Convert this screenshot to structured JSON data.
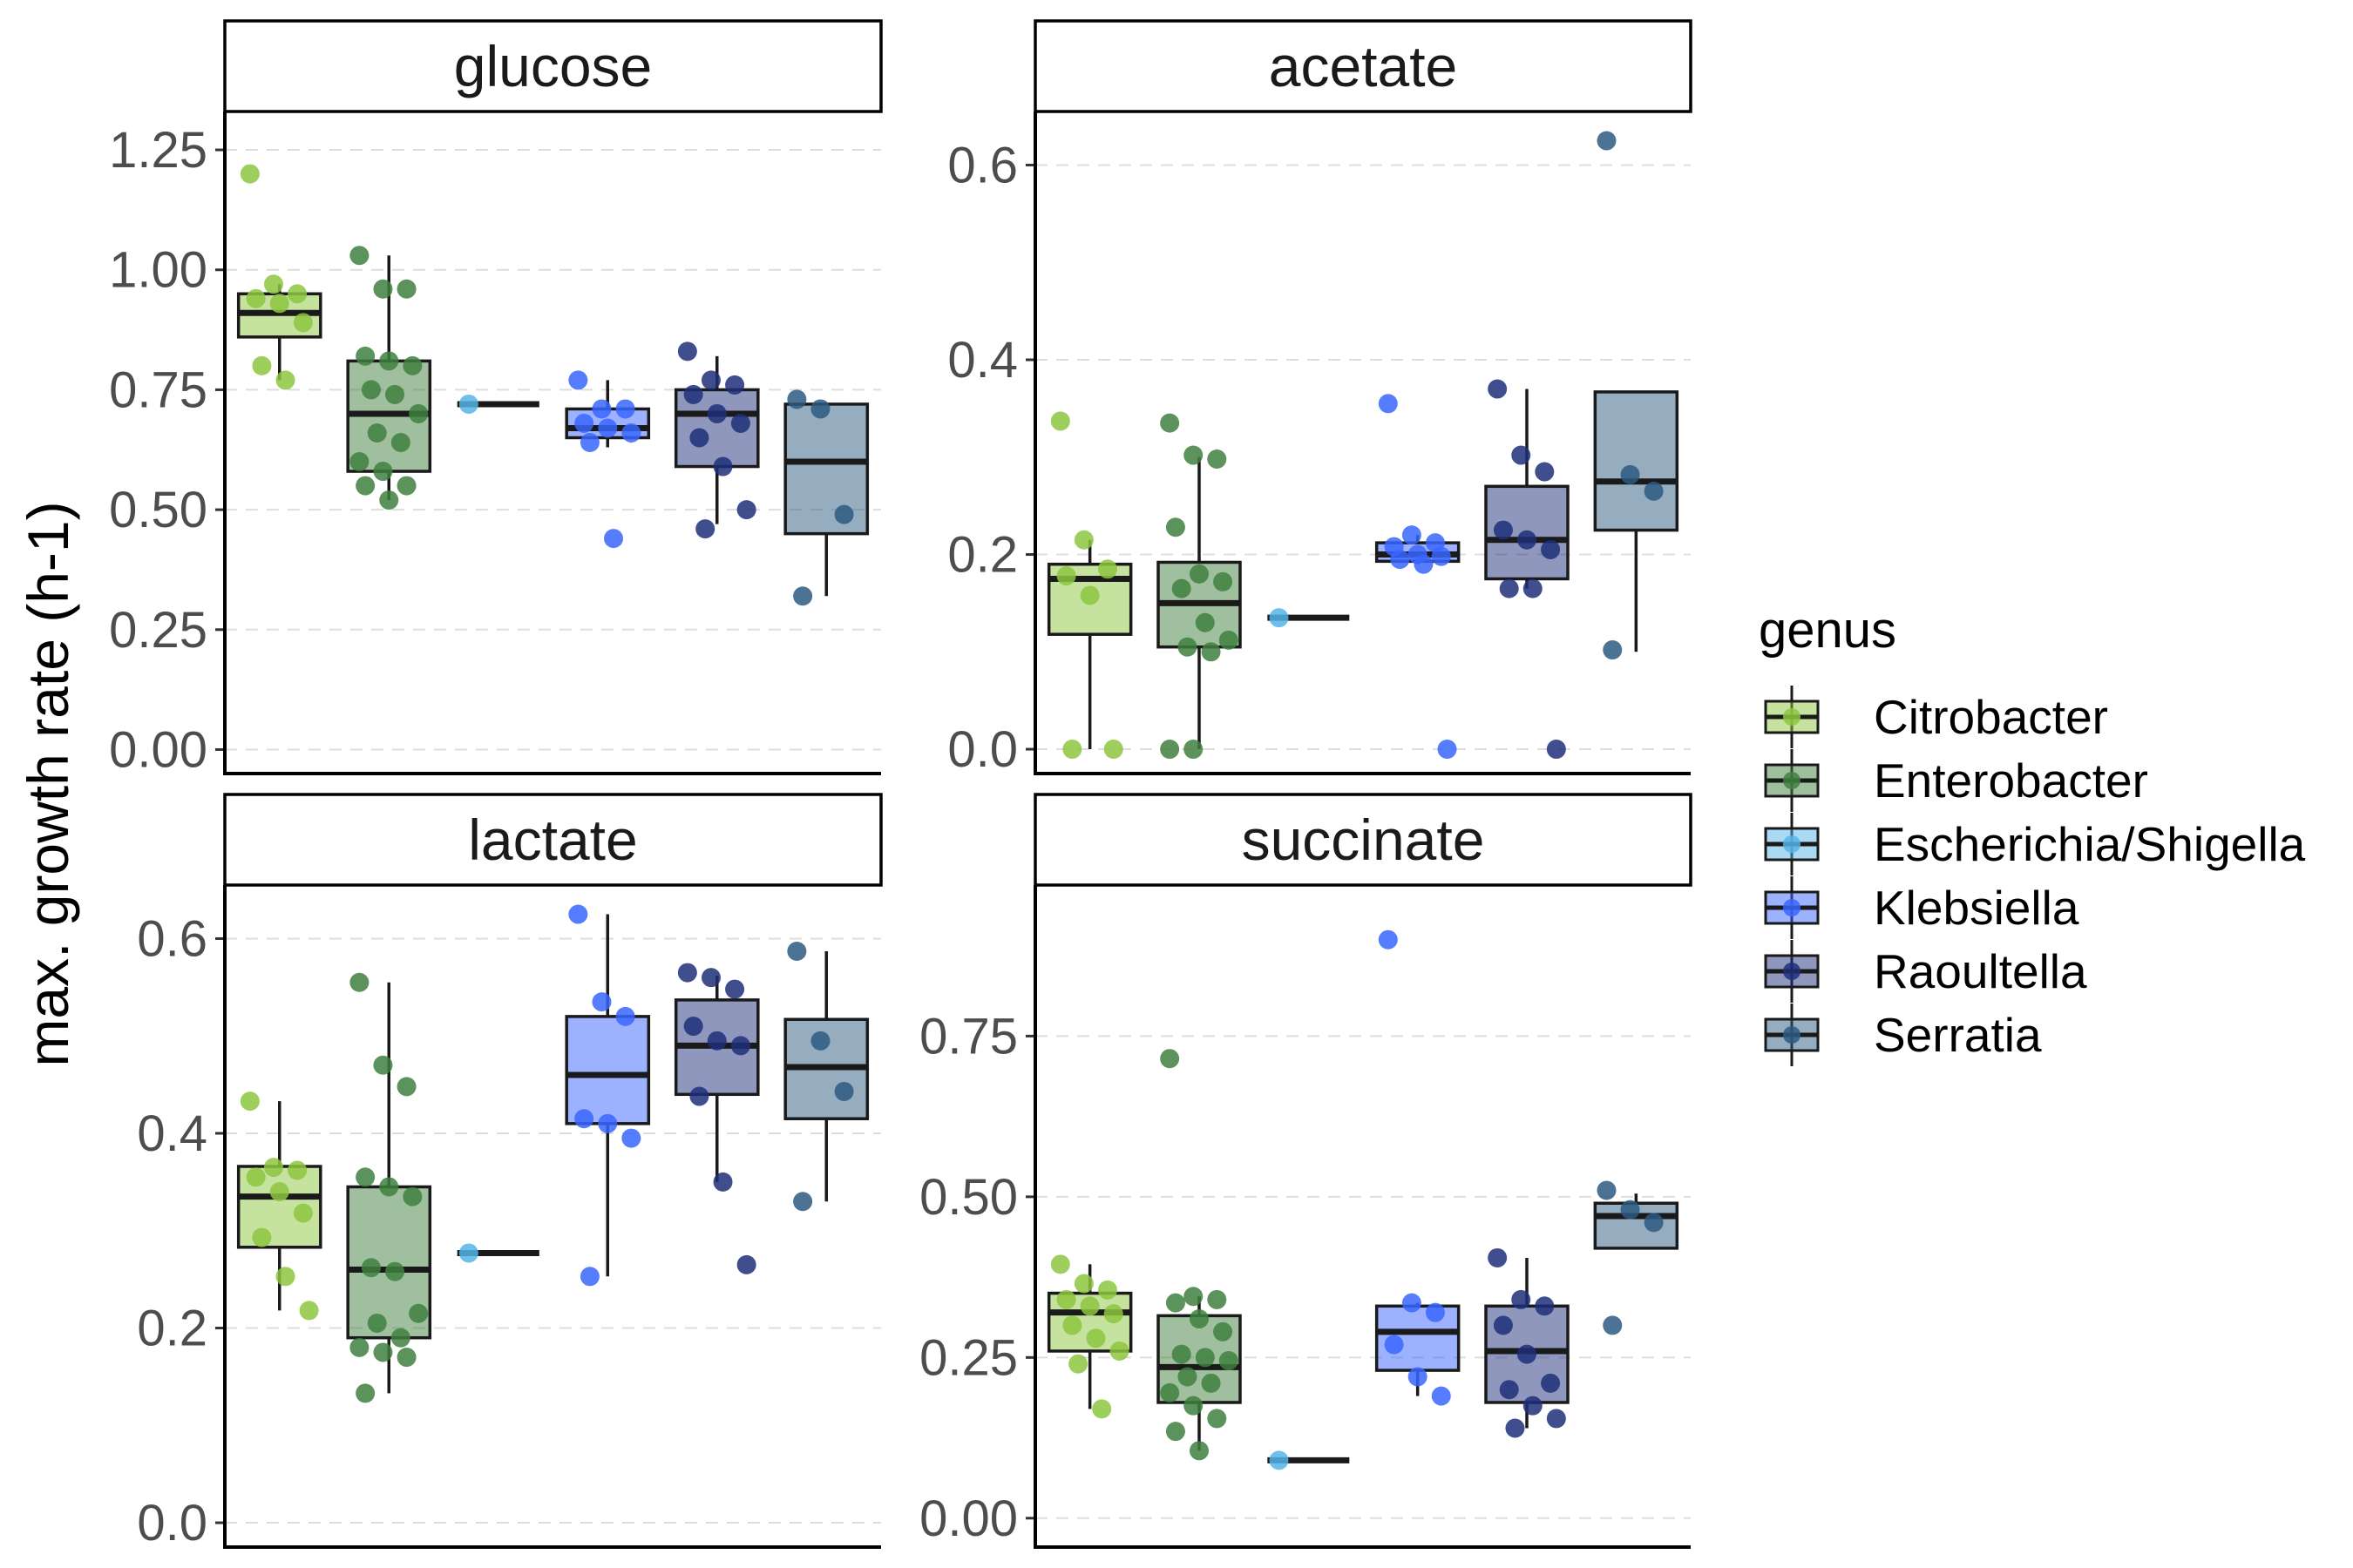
{
  "chart_data": {
    "type": "box",
    "ylabel": "max. growth rate (h-1)",
    "legend": {
      "title": "genus",
      "position": "right",
      "entries": [
        "Citrobacter",
        "Enterobacter",
        "Escherichia/Shigella",
        "Klebsiella",
        "Raoultella",
        "Serratia"
      ]
    },
    "colors": {
      "Citrobacter": "#8dc63f",
      "Enterobacter": "#3f7f3f",
      "Escherichia/Shigella": "#56b4e9",
      "Klebsiella": "#3a66ff",
      "Raoultella": "#1f2f7a",
      "Serratia": "#2d5a80"
    },
    "grid": "horizontal dashed major",
    "panels": [
      {
        "name": "glucose",
        "ylim": [
          -0.05,
          1.33
        ],
        "yticks": [
          0,
          0.25,
          0.5,
          0.75,
          1,
          1.25
        ],
        "ytick_labels": [
          "0.00",
          "0.25",
          "0.50",
          "0.75",
          "1.00",
          "1.25"
        ],
        "boxes": [
          {
            "genus": "Citrobacter",
            "min": 0.77,
            "q1": 0.86,
            "median": 0.91,
            "q3": 0.95,
            "max": 0.97,
            "points": [
              1.2,
              0.97,
              0.95,
              0.94,
              0.93,
              0.89,
              0.8,
              0.77
            ]
          },
          {
            "genus": "Enterobacter",
            "min": 0.52,
            "q1": 0.58,
            "median": 0.7,
            "q3": 0.81,
            "max": 1.03,
            "points": [
              1.03,
              0.96,
              0.96,
              0.82,
              0.81,
              0.8,
              0.75,
              0.74,
              0.7,
              0.66,
              0.64,
              0.6,
              0.58,
              0.55,
              0.55,
              0.52
            ]
          },
          {
            "genus": "Escherichia/Shigella",
            "min": 0.72,
            "q1": 0.72,
            "median": 0.72,
            "q3": 0.72,
            "max": 0.72,
            "points": [
              0.72
            ]
          },
          {
            "genus": "Klebsiella",
            "min": 0.63,
            "q1": 0.65,
            "median": 0.67,
            "q3": 0.71,
            "max": 0.77,
            "points": [
              0.77,
              0.71,
              0.71,
              0.68,
              0.67,
              0.66,
              0.64,
              0.44
            ]
          },
          {
            "genus": "Raoultella",
            "min": 0.47,
            "q1": 0.59,
            "median": 0.7,
            "q3": 0.75,
            "max": 0.82,
            "points": [
              0.83,
              0.77,
              0.76,
              0.74,
              0.7,
              0.68,
              0.65,
              0.59,
              0.5,
              0.46
            ]
          },
          {
            "genus": "Serratia",
            "min": 0.32,
            "q1": 0.45,
            "median": 0.6,
            "q3": 0.72,
            "max": 0.72,
            "points": [
              0.73,
              0.71,
              0.49,
              0.32
            ]
          }
        ]
      },
      {
        "name": "acetate",
        "ylim": [
          -0.025,
          0.655
        ],
        "yticks": [
          0,
          0.2,
          0.4,
          0.6
        ],
        "ytick_labels": [
          "0.0",
          "0.2",
          "0.4",
          "0.6"
        ],
        "boxes": [
          {
            "genus": "Citrobacter",
            "min": 0.0,
            "q1": 0.118,
            "median": 0.175,
            "q3": 0.19,
            "max": 0.215,
            "points": [
              0.337,
              0.215,
              0.185,
              0.178,
              0.158,
              0.0,
              0.0
            ]
          },
          {
            "genus": "Enterobacter",
            "min": 0.0,
            "q1": 0.105,
            "median": 0.15,
            "q3": 0.192,
            "max": 0.3,
            "points": [
              0.335,
              0.302,
              0.298,
              0.228,
              0.18,
              0.172,
              0.165,
              0.13,
              0.112,
              0.105,
              0.1,
              0.0,
              0.0
            ]
          },
          {
            "genus": "Escherichia/Shigella",
            "min": 0.135,
            "q1": 0.135,
            "median": 0.135,
            "q3": 0.135,
            "max": 0.135,
            "points": [
              0.135
            ]
          },
          {
            "genus": "Klebsiella",
            "min": 0.19,
            "q1": 0.193,
            "median": 0.2,
            "q3": 0.212,
            "max": 0.22,
            "points": [
              0.355,
              0.22,
              0.212,
              0.208,
              0.2,
              0.198,
              0.195,
              0.19,
              0.0
            ]
          },
          {
            "genus": "Raoultella",
            "min": 0.165,
            "q1": 0.175,
            "median": 0.215,
            "q3": 0.27,
            "max": 0.37,
            "points": [
              0.37,
              0.302,
              0.285,
              0.225,
              0.215,
              0.205,
              0.165,
              0.165,
              0.0
            ]
          },
          {
            "genus": "Serratia",
            "min": 0.1,
            "q1": 0.225,
            "median": 0.275,
            "q3": 0.367,
            "max": 0.367,
            "points": [
              0.625,
              0.282,
              0.265,
              0.102
            ]
          }
        ]
      },
      {
        "name": "lactate",
        "ylim": [
          -0.025,
          0.655
        ],
        "yticks": [
          0,
          0.2,
          0.4,
          0.6
        ],
        "ytick_labels": [
          "0.0",
          "0.2",
          "0.4",
          "0.6"
        ],
        "boxes": [
          {
            "genus": "Citrobacter",
            "min": 0.218,
            "q1": 0.283,
            "median": 0.335,
            "q3": 0.366,
            "max": 0.433,
            "points": [
              0.433,
              0.365,
              0.362,
              0.355,
              0.34,
              0.318,
              0.293,
              0.253,
              0.218
            ]
          },
          {
            "genus": "Enterobacter",
            "min": 0.133,
            "q1": 0.19,
            "median": 0.26,
            "q3": 0.345,
            "max": 0.555,
            "points": [
              0.555,
              0.47,
              0.448,
              0.355,
              0.345,
              0.335,
              0.262,
              0.258,
              0.215,
              0.205,
              0.19,
              0.18,
              0.175,
              0.17,
              0.133
            ]
          },
          {
            "genus": "Escherichia/Shigella",
            "min": 0.277,
            "q1": 0.277,
            "median": 0.277,
            "q3": 0.277,
            "max": 0.277,
            "points": [
              0.277
            ]
          },
          {
            "genus": "Klebsiella",
            "min": 0.253,
            "q1": 0.41,
            "median": 0.46,
            "q3": 0.52,
            "max": 0.625,
            "points": [
              0.625,
              0.535,
              0.52,
              0.415,
              0.41,
              0.395,
              0.253
            ]
          },
          {
            "genus": "Raoultella",
            "min": 0.35,
            "q1": 0.44,
            "median": 0.49,
            "q3": 0.537,
            "max": 0.562,
            "points": [
              0.565,
              0.56,
              0.548,
              0.51,
              0.495,
              0.49,
              0.438,
              0.35,
              0.265
            ]
          },
          {
            "genus": "Serratia",
            "min": 0.33,
            "q1": 0.415,
            "median": 0.468,
            "q3": 0.517,
            "max": 0.587,
            "points": [
              0.587,
              0.495,
              0.443,
              0.33
            ]
          }
        ]
      },
      {
        "name": "succinate",
        "ylim": [
          -0.045,
          0.985
        ],
        "yticks": [
          0,
          0.25,
          0.5,
          0.75
        ],
        "ytick_labels": [
          "0.00",
          "0.25",
          "0.50",
          "0.75"
        ],
        "boxes": [
          {
            "genus": "Citrobacter",
            "min": 0.17,
            "q1": 0.26,
            "median": 0.32,
            "q3": 0.35,
            "max": 0.395,
            "points": [
              0.395,
              0.365,
              0.355,
              0.34,
              0.33,
              0.318,
              0.3,
              0.28,
              0.26,
              0.24,
              0.17
            ]
          },
          {
            "genus": "Enterobacter",
            "min": 0.105,
            "q1": 0.18,
            "median": 0.235,
            "q3": 0.315,
            "max": 0.345,
            "points": [
              0.715,
              0.345,
              0.34,
              0.335,
              0.31,
              0.29,
              0.255,
              0.25,
              0.245,
              0.22,
              0.21,
              0.195,
              0.175,
              0.155,
              0.135,
              0.105
            ]
          },
          {
            "genus": "Escherichia/Shigella",
            "min": 0.09,
            "q1": 0.09,
            "median": 0.09,
            "q3": 0.09,
            "max": 0.09,
            "points": [
              0.09
            ]
          },
          {
            "genus": "Klebsiella",
            "min": 0.19,
            "q1": 0.23,
            "median": 0.29,
            "q3": 0.33,
            "max": 0.335,
            "points": [
              0.9,
              0.335,
              0.32,
              0.27,
              0.22,
              0.19
            ]
          },
          {
            "genus": "Raoultella",
            "min": 0.14,
            "q1": 0.18,
            "median": 0.26,
            "q3": 0.33,
            "max": 0.405,
            "points": [
              0.405,
              0.34,
              0.33,
              0.3,
              0.255,
              0.21,
              0.2,
              0.175,
              0.155,
              0.14
            ]
          },
          {
            "genus": "Serratia",
            "min": 0.42,
            "q1": 0.42,
            "median": 0.47,
            "q3": 0.49,
            "max": 0.505,
            "points": [
              0.51,
              0.48,
              0.46,
              0.3
            ]
          }
        ]
      }
    ]
  }
}
